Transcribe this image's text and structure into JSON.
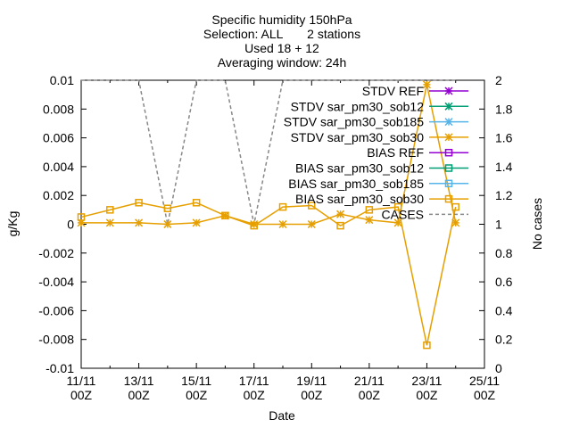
{
  "chart_data": {
    "type": "line",
    "title_lines": [
      "Specific humidity 150hPa",
      "Selection: ALL       2 stations",
      "Used 18 + 12",
      "Averaging window: 24h"
    ],
    "xlabel": "Date",
    "ylabel": "g/Kg",
    "y2label": "No cases",
    "x_ticks": [
      {
        "x": 0,
        "line1": "11/11",
        "line2": "00Z"
      },
      {
        "x": 2,
        "line1": "13/11",
        "line2": "00Z"
      },
      {
        "x": 4,
        "line1": "15/11",
        "line2": "00Z"
      },
      {
        "x": 6,
        "line1": "17/11",
        "line2": "00Z"
      },
      {
        "x": 8,
        "line1": "19/11",
        "line2": "00Z"
      },
      {
        "x": 10,
        "line1": "21/11",
        "line2": "00Z"
      },
      {
        "x": 12,
        "line1": "23/11",
        "line2": "00Z"
      },
      {
        "x": 14,
        "line1": "25/11",
        "line2": "00Z"
      }
    ],
    "xlim": [
      0,
      14
    ],
    "ylim": [
      -0.01,
      0.01
    ],
    "y_ticks": [
      "0.01",
      "0.008",
      "0.006",
      "0.004",
      "0.002",
      "0",
      "-0.002",
      "-0.004",
      "-0.006",
      "-0.008",
      "-0.01"
    ],
    "y2lim": [
      0,
      2
    ],
    "y2_ticks": [
      "2",
      "1.8",
      "1.6",
      "1.4",
      "1.2",
      "1",
      "0.8",
      "0.6",
      "0.4",
      "0.2",
      "0"
    ],
    "legend_position": "top-right",
    "series": [
      {
        "name": "STDV REF",
        "color": "#9400d3",
        "marker": "star",
        "axis": "y1",
        "x": [],
        "y": []
      },
      {
        "name": "STDV sar_pm30_sob12",
        "color": "#009e73",
        "marker": "star",
        "axis": "y1",
        "x": [],
        "y": []
      },
      {
        "name": "STDV sar_pm30_sob185",
        "color": "#56b4e9",
        "marker": "star",
        "axis": "y1",
        "x": [],
        "y": []
      },
      {
        "name": "STDV sar_pm30_sob30",
        "color": "#e69f00",
        "marker": "star",
        "axis": "y1",
        "x": [
          0,
          1,
          2,
          3,
          4,
          5,
          6,
          7,
          8,
          9,
          10,
          11,
          12,
          13
        ],
        "y": [
          0.0001,
          0.0001,
          0.0001,
          0.0,
          0.0001,
          0.0006,
          0.0,
          0.0,
          0.0,
          0.0007,
          0.0003,
          0.0001,
          0.0097,
          0.0001
        ]
      },
      {
        "name": "BIAS REF",
        "color": "#9400d3",
        "marker": "square",
        "axis": "y1",
        "x": [],
        "y": []
      },
      {
        "name": "BIAS sar_pm30_sob12",
        "color": "#009e73",
        "marker": "square",
        "axis": "y1",
        "x": [],
        "y": []
      },
      {
        "name": "BIAS sar_pm30_sob185",
        "color": "#56b4e9",
        "marker": "square",
        "axis": "y1",
        "x": [],
        "y": []
      },
      {
        "name": "BIAS sar_pm30_sob30",
        "color": "#e69f00",
        "marker": "square",
        "axis": "y1",
        "x": [
          0,
          1,
          2,
          3,
          4,
          5,
          6,
          7,
          8,
          9,
          10,
          11,
          12,
          13
        ],
        "y": [
          0.0005,
          0.001,
          0.0015,
          0.0011,
          0.0015,
          0.0006,
          -0.0001,
          0.0012,
          0.0013,
          -0.0001,
          0.001,
          0.0012,
          -0.0084,
          0.0012
        ]
      },
      {
        "name": "CASES",
        "color": "#888888",
        "marker": "none",
        "dashed": true,
        "axis": "y2",
        "x": [
          0,
          1,
          2,
          3,
          4,
          5,
          6,
          7,
          8,
          9,
          10,
          11,
          12,
          13
        ],
        "y": [
          2,
          2,
          2,
          1,
          2,
          2,
          1,
          2,
          2,
          2,
          2,
          2,
          2,
          2
        ]
      }
    ]
  }
}
